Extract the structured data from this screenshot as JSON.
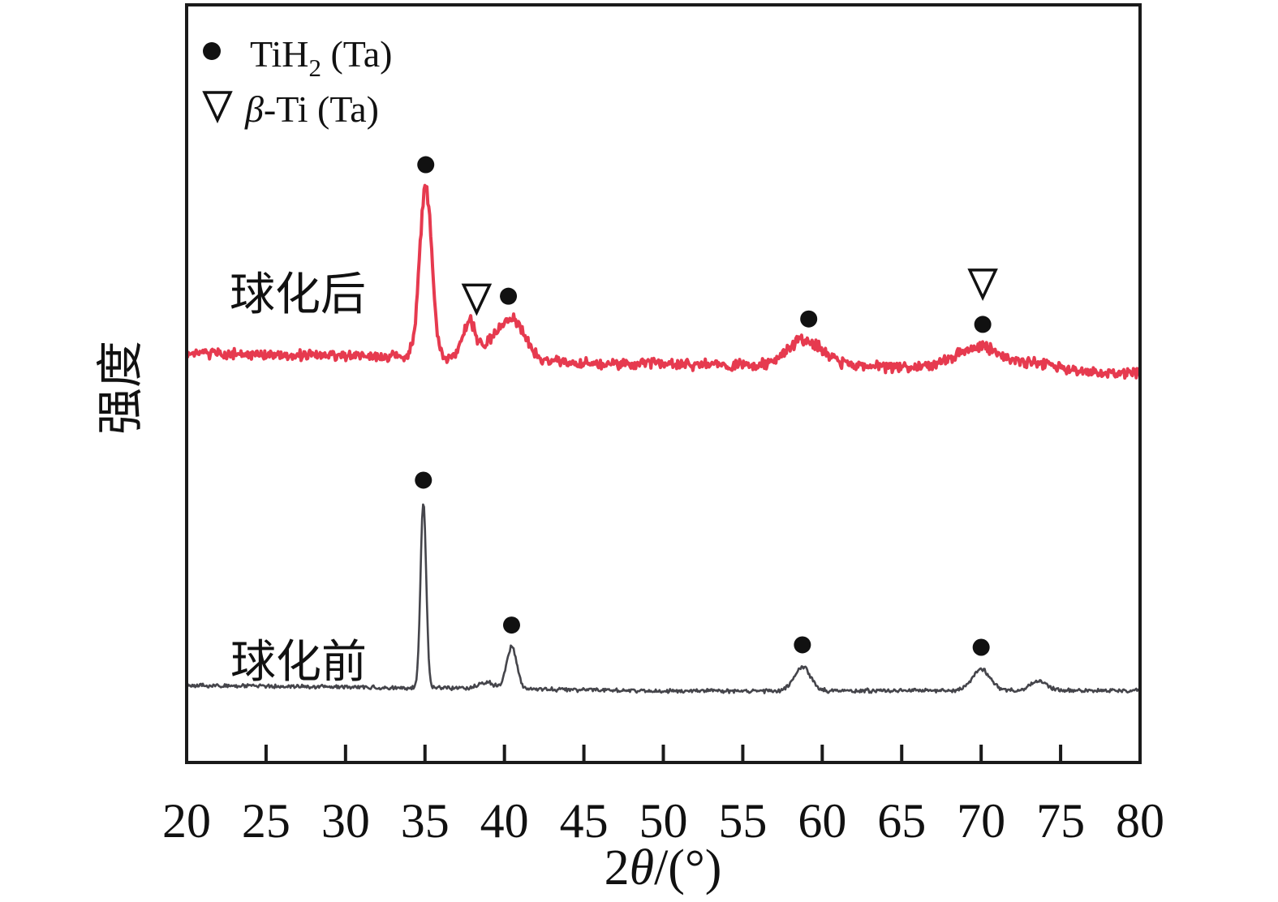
{
  "figure": {
    "background": "#ffffff",
    "frame_color": "#1a1a1a",
    "marker_color": "#111111"
  },
  "legend": {
    "row1": {
      "symbol": "filled-circle",
      "main": "TiH",
      "sub": "2",
      "rest": " (Ta)"
    },
    "row2": {
      "symbol": "open-down-triangle",
      "beta": "β",
      "rest": "-Ti (Ta)"
    }
  },
  "chart_data": {
    "type": "line",
    "title": "",
    "xlabel_parts": {
      "num": "2",
      "theta": "θ",
      "rest": "/(°)"
    },
    "ylabel": "强度",
    "x_range": [
      20,
      80
    ],
    "x_ticks": [
      20,
      25,
      30,
      35,
      40,
      45,
      50,
      55,
      60,
      65,
      70,
      75,
      80
    ],
    "legend_entries": [
      "TiH2 (Ta)",
      "β-Ti (Ta)"
    ],
    "series": [
      {
        "name": "球化后",
        "color": "#e63a4f",
        "peaks": [
          {
            "two_theta": 35.05,
            "rel_intensity": 1.0,
            "width_deg": 0.38,
            "phase": "TiH2"
          },
          {
            "two_theta": 37.8,
            "rel_intensity": 0.215,
            "width_deg": 0.4,
            "phase": "beta-Ti"
          },
          {
            "two_theta": 40.3,
            "rel_intensity": 0.248,
            "width_deg": 0.95,
            "phase": "TiH2"
          },
          {
            "two_theta": 58.9,
            "rel_intensity": 0.148,
            "width_deg": 1.15,
            "phase": "TiH2"
          },
          {
            "two_theta": 69.9,
            "rel_intensity": 0.138,
            "width_deg": 1.5,
            "phase": "TiH2 + beta-Ti"
          },
          {
            "two_theta": 73.9,
            "rel_intensity": 0.038,
            "width_deg": 1.2,
            "phase": ""
          }
        ],
        "markers": [
          {
            "two_theta": 35.05,
            "symbols": [
              "circle"
            ]
          },
          {
            "two_theta": 38.25,
            "symbols": [
              "nabla"
            ]
          },
          {
            "two_theta": 40.25,
            "symbols": [
              "circle"
            ]
          },
          {
            "two_theta": 59.15,
            "symbols": [
              "circle"
            ]
          },
          {
            "two_theta": 70.1,
            "symbols": [
              "circle",
              "nabla"
            ]
          }
        ]
      },
      {
        "name": "球化前",
        "color": "#45454b",
        "peaks": [
          {
            "two_theta": 34.9,
            "rel_intensity": 1.0,
            "width_deg": 0.18,
            "phase": "TiH2"
          },
          {
            "two_theta": 38.85,
            "rel_intensity": 0.035,
            "width_deg": 0.45,
            "phase": ""
          },
          {
            "two_theta": 40.45,
            "rel_intensity": 0.225,
            "width_deg": 0.32,
            "phase": "TiH2"
          },
          {
            "two_theta": 58.75,
            "rel_intensity": 0.13,
            "width_deg": 0.5,
            "phase": "TiH2"
          },
          {
            "two_theta": 70.0,
            "rel_intensity": 0.115,
            "width_deg": 0.55,
            "phase": "TiH2"
          },
          {
            "two_theta": 73.6,
            "rel_intensity": 0.053,
            "width_deg": 0.5,
            "phase": ""
          }
        ],
        "markers": [
          {
            "two_theta": 34.9,
            "symbols": [
              "circle"
            ]
          },
          {
            "two_theta": 40.45,
            "symbols": [
              "circle"
            ]
          },
          {
            "two_theta": 58.75,
            "symbols": [
              "circle"
            ]
          },
          {
            "two_theta": 70.0,
            "symbols": [
              "circle"
            ]
          }
        ]
      }
    ]
  }
}
